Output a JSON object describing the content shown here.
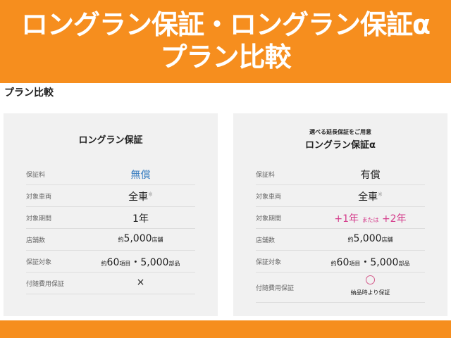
{
  "header": {
    "line1": "ロングラン保証・ロングラン保証α",
    "line2": "プラン比較"
  },
  "section_title": "プラン比較",
  "labels": [
    "保証料",
    "対象車両",
    "対象期間",
    "店舗数",
    "保証対象",
    "付随費用保証"
  ],
  "left": {
    "title": "ロングラン保証",
    "fee": "無償",
    "vehicles": "全車",
    "mark": "※",
    "period": "1年",
    "stores_pre": "約",
    "stores": "5,000",
    "stores_unit": "店舗",
    "cover_pre": "約",
    "cover_items": "60",
    "cover_items_unit": "項目",
    "cover_sep": "・",
    "cover_parts": "5,000",
    "cover_parts_unit": "部品",
    "extra": "×"
  },
  "right": {
    "subtitle": "選べる延長保証をご用意",
    "title": "ロングラン保証α",
    "fee": "有償",
    "vehicles": "全車",
    "mark": "※",
    "period1": "+1年",
    "period_or": "または",
    "period2": "+2年",
    "stores_pre": "約",
    "stores": "5,000",
    "stores_unit": "店舗",
    "cover_pre": "約",
    "cover_items": "60",
    "cover_items_unit": "項目",
    "cover_sep": "・",
    "cover_parts": "5,000",
    "cover_parts_unit": "部品",
    "extra": "○",
    "extra_note": "納品時より保証"
  },
  "colors": {
    "brand": "#f68e1e",
    "free": "#3a7ec1",
    "period": "#d43a8a"
  }
}
